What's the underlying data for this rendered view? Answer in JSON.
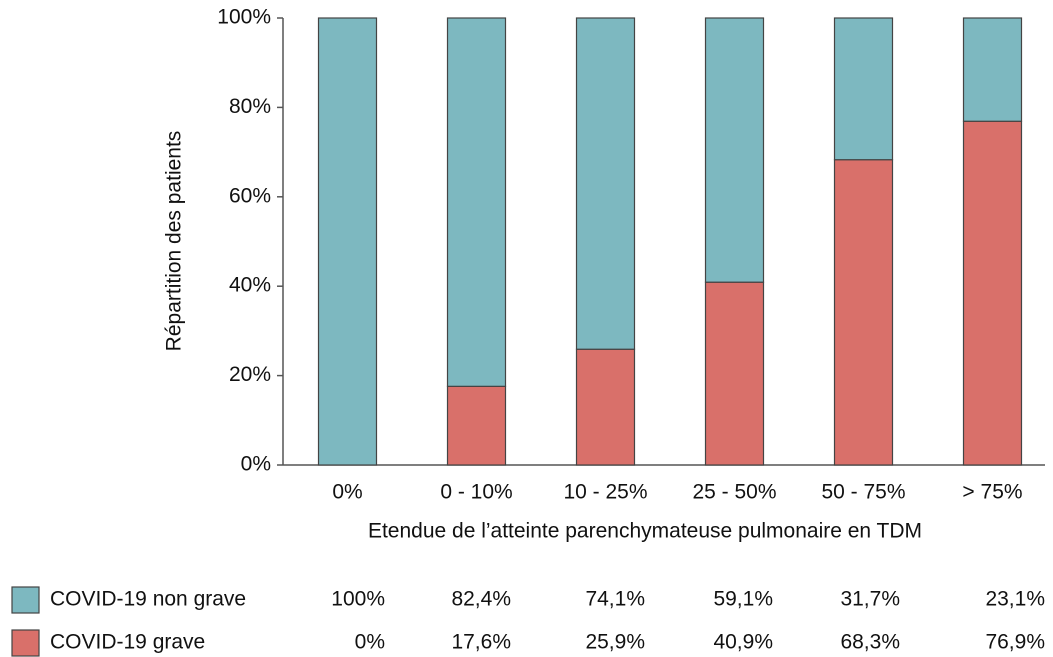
{
  "chart_data": {
    "type": "stacked_bar",
    "x_label": "Etendue de l’atteinte parenchymateuse pulmonaire en TDM",
    "y_label": "Répartition des patients",
    "categories": [
      "0%",
      "0 - 10%",
      "10 - 25%",
      "25 - 50%",
      "50 - 75%",
      "> 75%"
    ],
    "series": [
      {
        "name": "COVID-19 grave",
        "color": "#d9706a",
        "values": [
          0,
          17.6,
          25.9,
          40.9,
          68.3,
          76.9
        ],
        "value_labels": [
          "0%",
          "17,6%",
          "25,9%",
          "40,9%",
          "68,3%",
          "76,9%"
        ]
      },
      {
        "name": "COVID-19 non grave",
        "color": "#7db8c0",
        "values": [
          100,
          82.4,
          74.1,
          59.1,
          31.7,
          23.1
        ],
        "value_labels": [
          "100%",
          "82,4%",
          "74,1%",
          "59,1%",
          "31,7%",
          "23,1%"
        ]
      }
    ],
    "ylim": [
      0,
      100
    ],
    "yticks": [
      {
        "value": 0,
        "label": "0%"
      },
      {
        "value": 20,
        "label": "20%"
      },
      {
        "value": 40,
        "label": "40%"
      },
      {
        "value": 60,
        "label": "60%"
      },
      {
        "value": 80,
        "label": "80%"
      },
      {
        "value": 100,
        "label": "100%"
      }
    ]
  }
}
